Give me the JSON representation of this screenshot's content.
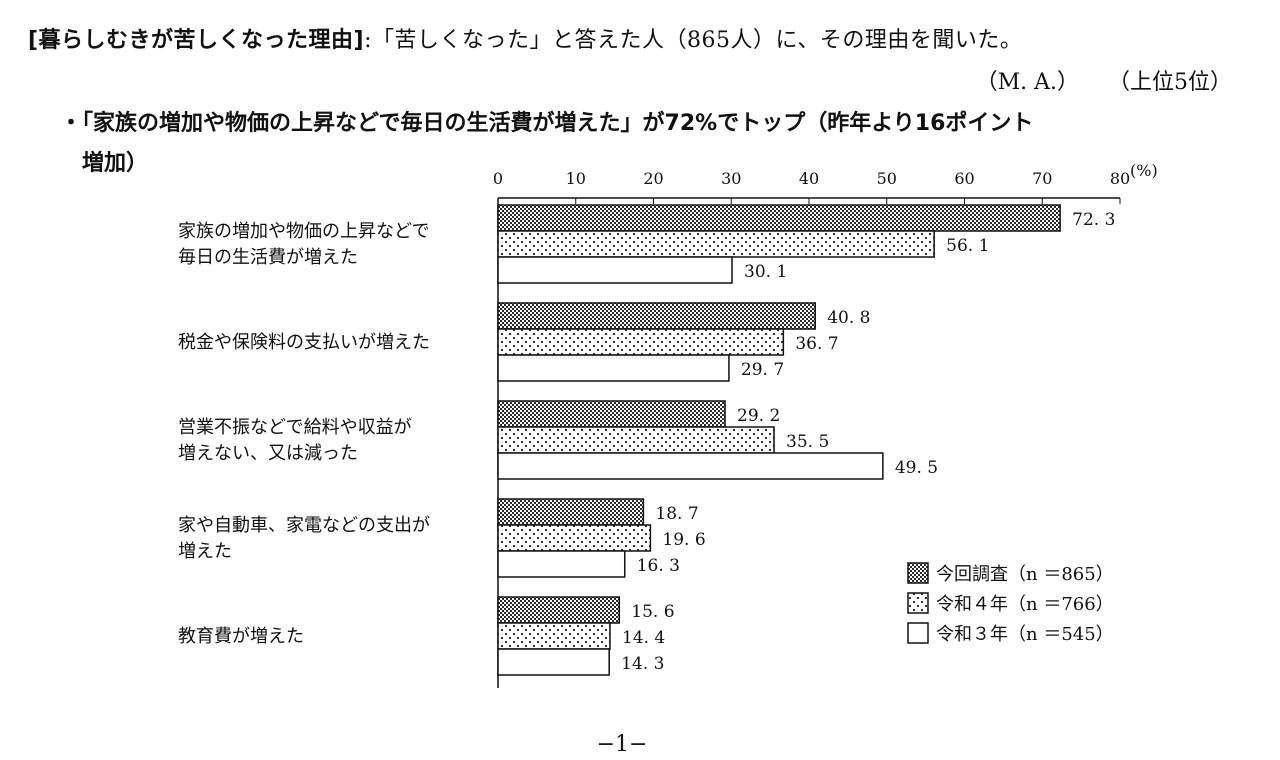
{
  "header": {
    "title_bracket": "[暮らしむきが苦しくなった理由]",
    "title_text": ":「苦しくなった」と答えた人（865人）に、その理由を聞いた。"
  },
  "notes": {
    "ma": "（M. A.）",
    "rank": "（上位5位）"
  },
  "summary": {
    "line1": "・「家族の増加や物価の上昇などで毎日の生活費が増えた」が72%でトップ（昨年より16ポイント",
    "line2": "増加）"
  },
  "page_number": "−1−",
  "chart_data": {
    "type": "bar",
    "orientation": "horizontal",
    "unit": "(%)",
    "xlim": [
      0,
      80
    ],
    "ticks": [
      0,
      10,
      20,
      30,
      40,
      50,
      60,
      70,
      80
    ],
    "tick_labels": [
      "0",
      "10",
      "20",
      "30",
      "40",
      "50",
      "60",
      "70",
      "80"
    ],
    "categories": [
      [
        "家族の増加や物価の上昇などで",
        "毎日の生活費が増えた"
      ],
      [
        "税金や保険料の支払いが増えた"
      ],
      [
        "営業不振などで給料や収益が",
        "増えない、又は減った"
      ],
      [
        "家や自動車、家電などの支出が",
        "増えた"
      ],
      [
        "教育費が増えた"
      ]
    ],
    "series": [
      {
        "name": "今回調査（n ＝865）",
        "pattern": "dense-dots",
        "values": [
          72.3,
          40.8,
          29.2,
          18.7,
          15.6
        ],
        "labels": [
          "72. 3",
          "40. 8",
          "29. 2",
          "18. 7",
          "15. 6"
        ]
      },
      {
        "name": "令和４年（n ＝766）",
        "pattern": "sparse-dots",
        "values": [
          56.1,
          36.7,
          35.5,
          19.6,
          14.4
        ],
        "labels": [
          "56. 1",
          "36. 7",
          "35. 5",
          "19. 6",
          "14. 4"
        ]
      },
      {
        "name": "令和３年（n ＝545）",
        "pattern": "blank",
        "values": [
          30.1,
          29.7,
          49.5,
          16.3,
          14.3
        ],
        "labels": [
          "30. 1",
          "29. 7",
          "49. 5",
          "16. 3",
          "14. 3"
        ]
      }
    ],
    "legend_position": "bottom-right",
    "grid": false
  }
}
